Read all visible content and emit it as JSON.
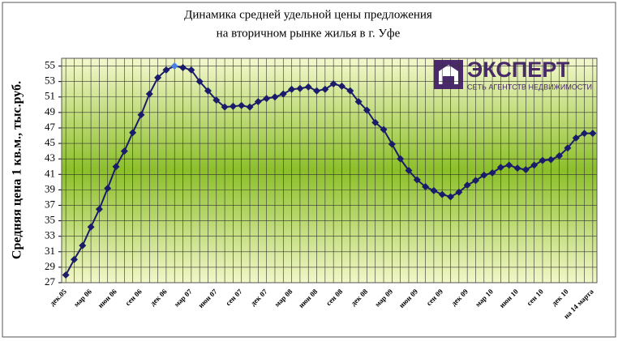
{
  "chart_data": {
    "type": "line",
    "title": "Динамика средней удельной цены предложения",
    "subtitle": "на вторичном рынке жилья в г. Уфе",
    "y_label": "Средняя цена 1 кв.м., тыс.руб.",
    "logo": {
      "name": "ЭКСПЕРТ",
      "tagline": "СЕТЬ АГЕНТСТВ НЕДВИЖИМОСТИ"
    },
    "categories": [
      "дек.05",
      null,
      null,
      "мар 06",
      null,
      null,
      "июн 06",
      null,
      null,
      "сен 06",
      null,
      null,
      "дек 06",
      null,
      null,
      "мар 07",
      null,
      null,
      "июн 07",
      null,
      null,
      "сен 07",
      null,
      null,
      "дек 07",
      null,
      null,
      "мар 08",
      null,
      null,
      "июн 08",
      null,
      null,
      "сен 08",
      null,
      null,
      "дек 08",
      null,
      null,
      "мар 09",
      null,
      null,
      "июн 09",
      null,
      null,
      "сен 09",
      null,
      null,
      "дек 09",
      null,
      null,
      "мар 10",
      null,
      null,
      "июн 10",
      null,
      null,
      "сен 10",
      null,
      null,
      "дек 10",
      null,
      null,
      "на 14 марта"
    ],
    "series": [
      {
        "color": "#1b1b6b",
        "highlight": {
          "index": 13,
          "color": "#4a80e8"
        },
        "values": [
          28,
          30,
          31.8,
          34.2,
          36.5,
          39.2,
          42,
          44,
          46.4,
          48.7,
          51.4,
          53.5,
          54.5,
          55,
          54.8,
          54.5,
          53,
          51.8,
          50.6,
          49.7,
          49.8,
          49.9,
          49.7,
          50.4,
          50.8,
          51,
          51.4,
          52,
          52.1,
          52.3,
          51.8,
          52,
          52.7,
          52.4,
          51.8,
          50.4,
          49.3,
          47.7,
          46.8,
          44.9,
          43,
          41.5,
          40.3,
          39.4,
          38.9,
          38.4,
          38.1,
          38.7,
          39.6,
          40.2,
          40.9,
          41.2,
          41.9,
          42.2,
          41.8,
          41.6,
          42.2,
          42.8,
          42.9,
          43.4,
          44.4,
          45.7,
          46.3,
          46.3
        ]
      }
    ],
    "ylim": [
      27,
      56
    ],
    "yticks": [
      27,
      29,
      31,
      33,
      35,
      37,
      39,
      41,
      43,
      45,
      47,
      49,
      51,
      53,
      55
    ],
    "grid": true
  }
}
